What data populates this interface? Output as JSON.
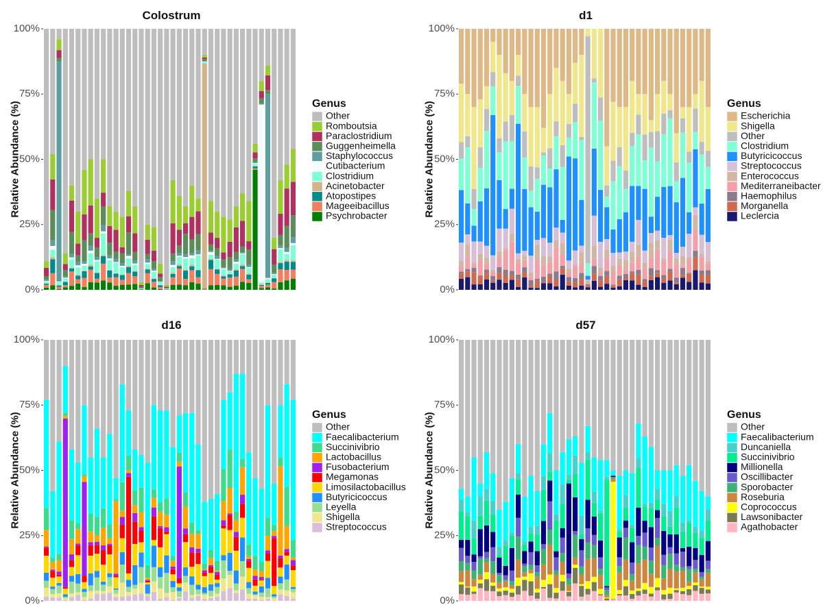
{
  "chart_data": [
    {
      "type": "bar",
      "stacked": true,
      "title": "Colostrum",
      "ylabel": "Relative Abundance (%)",
      "ylim": [
        0,
        100
      ],
      "yticks": [
        "0%",
        "25%",
        "50%",
        "75%",
        "100%"
      ],
      "legend_title": "Genus",
      "legend_placement": "right",
      "n_samples": 40,
      "series": [
        {
          "name": "Other",
          "color": "#bebebe"
        },
        {
          "name": "Romboutsia",
          "color": "#9acd32"
        },
        {
          "name": "Paraclostridium",
          "color": "#b03060"
        },
        {
          "name": "Guggenheimella",
          "color": "#5b8c5a"
        },
        {
          "name": "Staphylococcus",
          "color": "#5f9ea0"
        },
        {
          "name": "Cutibacterium",
          "color": "#f4fbfb"
        },
        {
          "name": "Clostridium",
          "color": "#7fffd4"
        },
        {
          "name": "Acinetobacter",
          "color": "#d2b48c"
        },
        {
          "name": "Atopostipes",
          "color": "#008b8b"
        },
        {
          "name": "Mageeibacillus",
          "color": "#f08060"
        },
        {
          "name": "Psychrobacter",
          "color": "#008000"
        }
      ]
    },
    {
      "type": "bar",
      "stacked": true,
      "title": "d1",
      "ylabel": "Relative Abundance (%)",
      "ylim": [
        0,
        100
      ],
      "yticks": [
        "0%",
        "25%",
        "50%",
        "75%",
        "100%"
      ],
      "legend_title": "Genus",
      "legend_placement": "right",
      "n_samples": 40,
      "series": [
        {
          "name": "Escherichia",
          "color": "#deb887"
        },
        {
          "name": "Shigella",
          "color": "#f0e68c"
        },
        {
          "name": "Other",
          "color": "#bebebe"
        },
        {
          "name": "Clostridium",
          "color": "#7fffd4"
        },
        {
          "name": "Butyricicoccus",
          "color": "#1e90ff"
        },
        {
          "name": "Streptococcus",
          "color": "#d8bfd8"
        },
        {
          "name": "Enterococcus",
          "color": "#d2b7a5"
        },
        {
          "name": "Mediterraneibacter",
          "color": "#f4a0a8"
        },
        {
          "name": "Haemophilus",
          "color": "#8b7b8b"
        },
        {
          "name": "Morganella",
          "color": "#cd6a50"
        },
        {
          "name": "Leclercia",
          "color": "#191970"
        }
      ]
    },
    {
      "type": "bar",
      "stacked": true,
      "title": "d16",
      "ylabel": "Relative Abundance (%)",
      "ylim": [
        0,
        100
      ],
      "yticks": [
        "0%",
        "25%",
        "50%",
        "75%",
        "100%"
      ],
      "legend_title": "Genus",
      "legend_placement": "right",
      "n_samples": 40,
      "series": [
        {
          "name": "Other",
          "color": "#bebebe"
        },
        {
          "name": "Faecalibacterium",
          "color": "#00ffff"
        },
        {
          "name": "Succinivibrio",
          "color": "#3cdc8c"
        },
        {
          "name": "Lactobacillus",
          "color": "#ffa500"
        },
        {
          "name": "Fusobacterium",
          "color": "#a020f0"
        },
        {
          "name": "Megamonas",
          "color": "#ff0000"
        },
        {
          "name": "Limosilactobacillus",
          "color": "#ffd700"
        },
        {
          "name": "Butyricicoccus",
          "color": "#1e90ff"
        },
        {
          "name": "Leyella",
          "color": "#98e090"
        },
        {
          "name": "Shigella",
          "color": "#f0e68c"
        },
        {
          "name": "Streptococcus",
          "color": "#d8bfd8"
        }
      ]
    },
    {
      "type": "bar",
      "stacked": true,
      "title": "d57",
      "ylabel": "Relative Abundance (%)",
      "ylim": [
        0,
        100
      ],
      "yticks": [
        "0%",
        "25%",
        "50%",
        "75%",
        "100%"
      ],
      "legend_title": "Genus",
      "legend_placement": "right",
      "n_samples": 40,
      "series": [
        {
          "name": "Other",
          "color": "#bebebe"
        },
        {
          "name": "Faecalibacterium",
          "color": "#00ffff"
        },
        {
          "name": "Duncaniella",
          "color": "#48d1cc"
        },
        {
          "name": "Succinivibrio",
          "color": "#00ee90"
        },
        {
          "name": "Millionella",
          "color": "#000080"
        },
        {
          "name": "Oscillibacter",
          "color": "#6a5acd"
        },
        {
          "name": "Sporobacter",
          "color": "#3cb371"
        },
        {
          "name": "Roseburia",
          "color": "#cd853f"
        },
        {
          "name": "Coprococcus",
          "color": "#ffff00"
        },
        {
          "name": "Lawsonibacter",
          "color": "#7a7a55"
        },
        {
          "name": "Agathobacter",
          "color": "#ffb6c1"
        }
      ]
    }
  ]
}
